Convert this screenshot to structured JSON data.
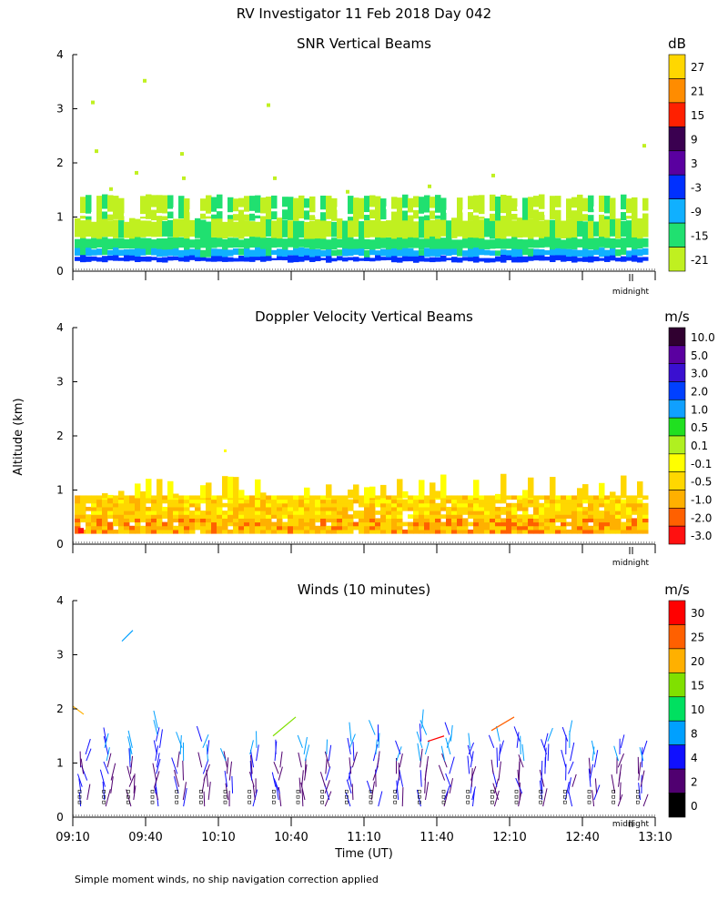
{
  "title": "RV Investigator  11 Feb 2018 Day 042",
  "ylabel": "Altitude (km)",
  "xlabel": "Time (UT)",
  "footnote": "Simple moment winds, no ship navigation correction applied",
  "midnight_label": "midnight",
  "x_ticks": [
    "09:10",
    "09:40",
    "10:10",
    "10:40",
    "11:10",
    "11:40",
    "12:10",
    "12:40",
    "13:10"
  ],
  "y_ticks": [
    "0",
    "1",
    "2",
    "3",
    "4"
  ],
  "chart_data": [
    {
      "type": "heatmap",
      "title": "SNR Vertical Beams",
      "units": "dB",
      "ylabel": "Altitude (km)",
      "ylim": [
        0,
        4
      ],
      "xlim": [
        "09:10",
        "13:10"
      ],
      "colorbar": {
        "labels": [
          "27",
          "21",
          "15",
          "9",
          "3",
          "-3",
          "-9",
          "-15",
          "-21"
        ],
        "colors": [
          "#ffd700",
          "#ff8c00",
          "#ff2000",
          "#3a0050",
          "#5a00a0",
          "#0030ff",
          "#10b0ff",
          "#20e070",
          "#c0f020"
        ]
      },
      "description_values": {
        "echo_top_km": 1.4,
        "max_snr_layer_km": [
          0.2,
          0.4
        ]
      }
    },
    {
      "type": "heatmap",
      "title": "Doppler Velocity Vertical Beams",
      "units": "m/s",
      "ylabel": "Altitude (km)",
      "ylim": [
        0,
        4
      ],
      "xlim": [
        "09:10",
        "13:10"
      ],
      "colorbar": {
        "labels": [
          "10.0",
          "5.0",
          "3.0",
          "2.0",
          "1.0",
          "0.5",
          "0.1",
          "-0.1",
          "-0.5",
          "-1.0",
          "-2.0",
          "-3.0"
        ],
        "colors": [
          "#300030",
          "#5a00a0",
          "#3a10d0",
          "#0040ff",
          "#10a0ff",
          "#20e020",
          "#b0f020",
          "#ffff00",
          "#ffd700",
          "#ffb000",
          "#ff6000",
          "#ff1010"
        ]
      },
      "description_values": {
        "echo_top_km": 1.3
      }
    },
    {
      "type": "scatter",
      "title": "Winds (10 minutes)",
      "units": "m/s",
      "ylabel": "Altitude (km)",
      "xlabel": "Time (UT)",
      "ylim": [
        0,
        4
      ],
      "xlim": [
        "09:10",
        "13:10"
      ],
      "colorbar": {
        "labels": [
          "30",
          "25",
          "20",
          "15",
          "10",
          "8",
          "4",
          "2",
          "0"
        ],
        "colors": [
          "#ff0000",
          "#ff6000",
          "#ffb000",
          "#80e000",
          "#00e060",
          "#00a0ff",
          "#1010ff",
          "#500070",
          "#000000"
        ]
      },
      "profile_times": [
        "09:10",
        "09:20",
        "09:30",
        "09:40",
        "09:50",
        "10:00",
        "10:10",
        "10:20",
        "10:30",
        "10:40",
        "10:50",
        "11:00",
        "11:10",
        "11:20",
        "11:30",
        "11:40",
        "11:50",
        "12:00",
        "12:10",
        "12:20",
        "12:30",
        "12:40",
        "12:50",
        "13:00"
      ]
    }
  ]
}
